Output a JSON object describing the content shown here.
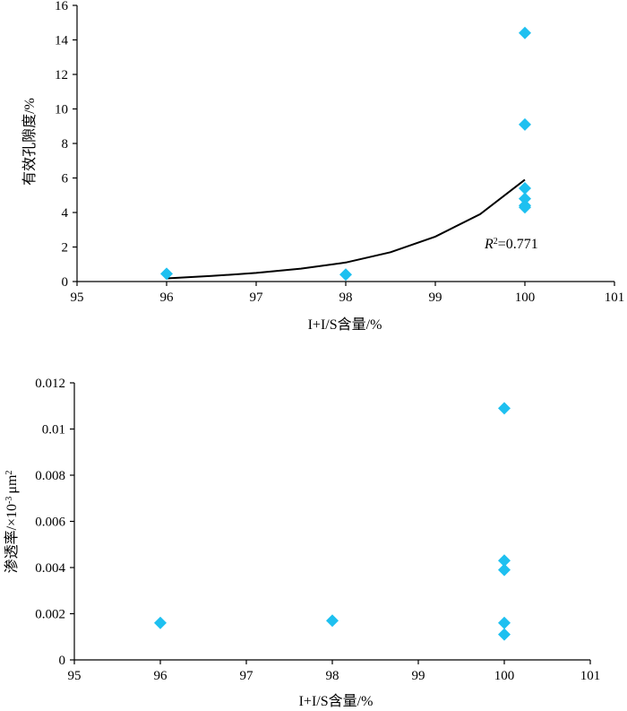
{
  "chart_data": [
    {
      "type": "scatter",
      "x": [
        96,
        98,
        100,
        100,
        100,
        100,
        100,
        100
      ],
      "y": [
        0.45,
        0.4,
        14.4,
        9.1,
        5.4,
        4.8,
        4.4,
        4.3
      ],
      "xlim": [
        95,
        101
      ],
      "ylim": [
        0,
        16
      ],
      "xticks": [
        "95",
        "96",
        "97",
        "98",
        "99",
        "100",
        "101"
      ],
      "yticks": [
        "0",
        "2",
        "4",
        "6",
        "8",
        "10",
        "12",
        "14",
        "16"
      ],
      "xlabel": "I+I/S含量/%",
      "ylabel": "有效孔隙度/%",
      "marker_color": "#1EC0F0",
      "trendline": {
        "type": "exponential",
        "x": [
          96,
          96.5,
          97,
          97.5,
          98,
          98.5,
          99,
          99.5,
          100
        ],
        "y": [
          0.18,
          0.32,
          0.5,
          0.75,
          1.1,
          1.7,
          2.6,
          3.9,
          5.9
        ],
        "r2_prefix": "R",
        "r2_sup": "2",
        "r2_value": "=0.771"
      }
    },
    {
      "type": "scatter",
      "x": [
        96,
        98,
        100,
        100,
        100,
        100,
        100
      ],
      "y": [
        0.0016,
        0.0017,
        0.0109,
        0.0043,
        0.0039,
        0.0016,
        0.0011
      ],
      "xlim": [
        95,
        101
      ],
      "ylim": [
        0,
        0.012
      ],
      "xticks": [
        "95",
        "96",
        "97",
        "98",
        "99",
        "100",
        "101"
      ],
      "yticks": [
        "0",
        "0.002",
        "0.004",
        "0.006",
        "0.008",
        "0.01",
        "0.012"
      ],
      "xlabel": "I+I/S含量/%",
      "ylabel_main": "渗透率/×10",
      "ylabel_sup": "-3",
      "ylabel_unit": "μm",
      "ylabel_unit_sup": "2",
      "marker_color": "#1EC0F0"
    }
  ]
}
